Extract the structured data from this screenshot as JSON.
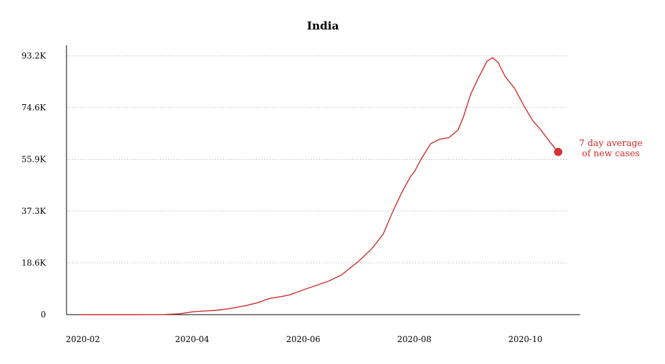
{
  "chart_data": {
    "type": "line",
    "title": "India",
    "xlabel": "",
    "ylabel": "",
    "grid": true,
    "x_ticks": [
      "2020-02",
      "2020-04",
      "2020-06",
      "2020-08",
      "2020-10"
    ],
    "y_ticks": [
      {
        "value": 0,
        "label": "0"
      },
      {
        "value": 18600,
        "label": "18.6K"
      },
      {
        "value": 37300,
        "label": "37.3K"
      },
      {
        "value": 55900,
        "label": "55.9K"
      },
      {
        "value": 74600,
        "label": "74.6K"
      },
      {
        "value": 93200,
        "label": "93.2K"
      }
    ],
    "ylim": [
      0,
      97000
    ],
    "xlim": [
      "2020-01-23",
      "2020-10-31"
    ],
    "annotation": {
      "line1": "7 day average",
      "line2": "of new cases"
    },
    "colors": {
      "line": "#cc2929",
      "marker": "#d93030",
      "grid": "#bbbbbb",
      "axis": "#000000"
    },
    "series": [
      {
        "x": [
          "2020-01-30",
          "2020-02-15",
          "2020-03-01",
          "2020-03-15",
          "2020-03-25",
          "2020-04-01",
          "2020-04-08",
          "2020-04-15",
          "2020-04-22",
          "2020-05-01",
          "2020-05-08",
          "2020-05-12",
          "2020-05-15",
          "2020-05-20",
          "2020-05-25",
          "2020-06-01",
          "2020-06-08",
          "2020-06-15",
          "2020-06-22",
          "2020-07-01",
          "2020-07-08",
          "2020-07-10",
          "2020-07-15",
          "2020-07-20",
          "2020-07-25",
          "2020-07-30",
          "2020-08-01",
          "2020-08-05",
          "2020-08-10",
          "2020-08-15",
          "2020-08-20",
          "2020-08-25",
          "2020-08-28",
          "2020-09-01",
          "2020-09-05",
          "2020-09-10",
          "2020-09-13",
          "2020-09-16",
          "2020-09-20",
          "2020-09-25",
          "2020-09-30",
          "2020-10-05",
          "2020-10-10",
          "2020-10-15",
          "2020-10-19"
        ],
        "values": [
          0,
          0,
          0,
          30,
          300,
          1000,
          1300,
          1600,
          2200,
          3300,
          4500,
          5500,
          6000,
          6500,
          7200,
          8900,
          10500,
          12100,
          14300,
          19000,
          23300,
          24800,
          29100,
          36800,
          43800,
          49800,
          51400,
          56300,
          61500,
          63200,
          63700,
          66500,
          71200,
          79400,
          85000,
          91300,
          92500,
          90800,
          85600,
          81600,
          75400,
          69900,
          66100,
          61700,
          58600
        ]
      }
    ]
  }
}
